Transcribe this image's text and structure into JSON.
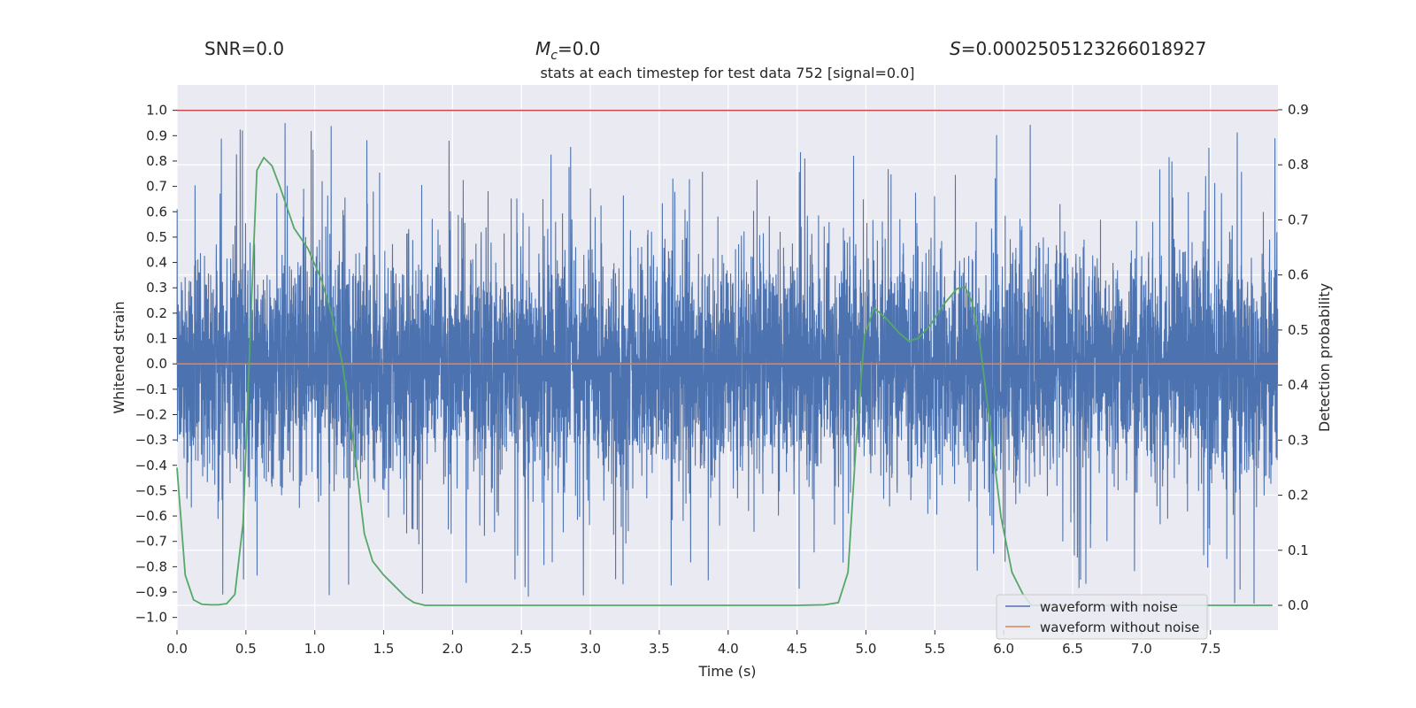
{
  "header": {
    "snr": "SNR=0.0",
    "mc_symbol": "M",
    "mc_sub": "c",
    "mc_value": "=0.0",
    "s_symbol": "S",
    "s_value": "=0.0002505123266018927"
  },
  "chart_data": {
    "type": "line",
    "title": "stats at each timestep for test data 752 [signal=0.0]",
    "xlabel": "Time (s)",
    "ylabel": "Whitened strain",
    "y2label": "Detection probability",
    "xlim": [
      0.0,
      7.99
    ],
    "ylim": [
      -1.05,
      1.1
    ],
    "y2lim": [
      -0.045,
      0.945
    ],
    "xticks": [
      "0.0",
      "0.5",
      "1.0",
      "1.5",
      "2.0",
      "2.5",
      "3.0",
      "3.5",
      "4.0",
      "4.5",
      "5.0",
      "5.5",
      "6.0",
      "6.5",
      "7.0",
      "7.5"
    ],
    "yticks": [
      "1.0",
      "0.9",
      "0.8",
      "0.7",
      "0.6",
      "0.5",
      "0.4",
      "0.3",
      "0.2",
      "0.1",
      "0.0",
      "−0.1",
      "−0.2",
      "−0.3",
      "−0.4",
      "−0.5",
      "−0.6",
      "−0.7",
      "−0.8",
      "−0.9",
      "−1.0"
    ],
    "y2ticks": [
      "0.9",
      "0.8",
      "0.7",
      "0.6",
      "0.5",
      "0.4",
      "0.3",
      "0.2",
      "0.1",
      "0.0"
    ],
    "grid": true,
    "legend": "lower-right",
    "colors": {
      "noise": "#4c72b0",
      "clean": "#dd8452",
      "probability": "#55a868",
      "threshold": "#c44e52",
      "background": "#eaeaf2",
      "grid": "#ffffff"
    },
    "series": [
      {
        "name": "waveform with noise",
        "axis": "left",
        "kind": "noise",
        "approx_envelope": [
          -0.95,
          1.0
        ]
      },
      {
        "name": "waveform without noise",
        "axis": "left",
        "constant": 0.0
      }
    ],
    "threshold_line": {
      "axis": "left",
      "y": 1.0
    },
    "probability_series": {
      "axis": "right",
      "x": [
        0.0,
        0.06,
        0.12,
        0.18,
        0.24,
        0.3,
        0.36,
        0.42,
        0.48,
        0.54,
        0.58,
        0.63,
        0.69,
        0.75,
        0.85,
        0.95,
        1.05,
        1.12,
        1.2,
        1.28,
        1.36,
        1.42,
        1.5,
        1.58,
        1.66,
        1.72,
        1.8,
        2.0,
        3.0,
        4.0,
        4.5,
        4.7,
        4.8,
        4.87,
        4.93,
        4.99,
        5.06,
        5.15,
        5.24,
        5.31,
        5.38,
        5.47,
        5.56,
        5.66,
        5.72,
        5.77,
        5.82,
        5.9,
        5.98,
        6.06,
        6.14,
        6.2,
        6.5,
        7.0,
        7.5,
        7.95
      ],
      "y": [
        0.25,
        0.055,
        0.01,
        0.002,
        0.001,
        0.001,
        0.003,
        0.02,
        0.15,
        0.55,
        0.79,
        0.813,
        0.798,
        0.758,
        0.685,
        0.648,
        0.59,
        0.53,
        0.44,
        0.3,
        0.13,
        0.08,
        0.055,
        0.035,
        0.015,
        0.005,
        0.0,
        0.0,
        0.0,
        0.0,
        0.0,
        0.001,
        0.005,
        0.06,
        0.3,
        0.49,
        0.54,
        0.52,
        0.495,
        0.48,
        0.485,
        0.51,
        0.545,
        0.575,
        0.578,
        0.55,
        0.49,
        0.33,
        0.16,
        0.06,
        0.02,
        0.0,
        0.0,
        0.0,
        0.0,
        0.0
      ]
    }
  }
}
